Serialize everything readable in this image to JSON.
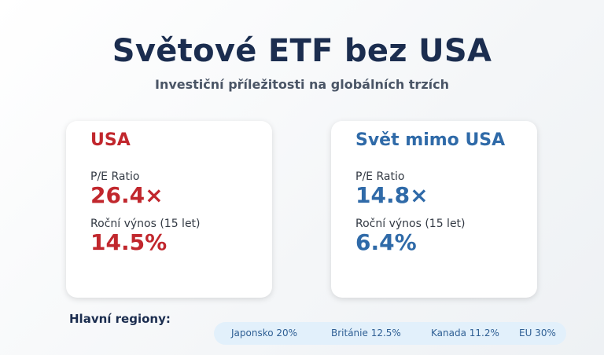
{
  "header": {
    "title": "Světové ETF bez USA",
    "subtitle": "Investiční příležitosti na globálních trzích"
  },
  "cards": {
    "usa": {
      "title": "USA",
      "pe_label": "P/E Ratio",
      "pe_value": "26.4×",
      "return_label": "Roční výnos (15 let)",
      "return_value": "14.5%",
      "accent": "#c1272d"
    },
    "world": {
      "title": "Svět mimo USA",
      "pe_label": "P/E Ratio",
      "pe_value": "14.8×",
      "return_label": "Roční výnos (15 let)",
      "return_value": "6.4%",
      "accent": "#2f6aa8"
    }
  },
  "regions": {
    "label": "Hlavní regiony:",
    "items": [
      "Japonsko 20%",
      "Británie 12.5%",
      "Kanada 11.2%",
      "EU 30%"
    ]
  }
}
